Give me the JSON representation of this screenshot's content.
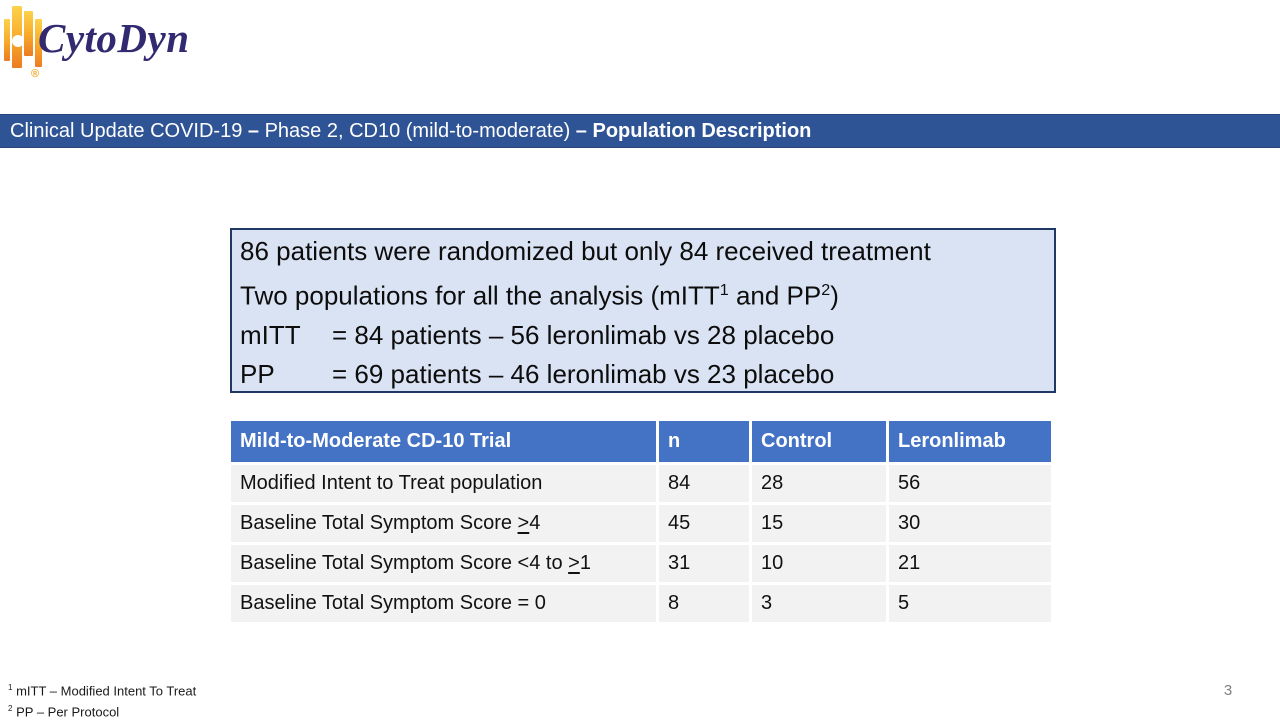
{
  "logo": {
    "text": "CytoDyn",
    "registered": "®"
  },
  "title_bar": {
    "segments": [
      {
        "t": "Clinical Update COVID-19 "
      },
      {
        "t": "– ",
        "b": true
      },
      {
        "t": "Phase 2, CD10 (mild-to-moderate) "
      },
      {
        "t": "– ",
        "b": true
      },
      {
        "t": "Population Description",
        "b": true
      }
    ]
  },
  "info_box": {
    "lines": [
      {
        "label": null,
        "segments": [
          {
            "t": "86 patients were randomized but only 84 received treatment"
          }
        ]
      },
      {
        "label": null,
        "segments": [
          {
            "t": "Two populations for all the analysis (mITT"
          },
          {
            "t": "1",
            "sup": true
          },
          {
            "t": " and PP"
          },
          {
            "t": "2",
            "sup": true
          },
          {
            "t": ")"
          }
        ]
      },
      {
        "label": "mITT",
        "segments": [
          {
            "t": "= 84 patients – 56 leronlimab vs 28 placebo"
          }
        ]
      },
      {
        "label": "PP",
        "segments": [
          {
            "t": "= 69 patients – 46 leronlimab vs 23 placebo"
          }
        ]
      }
    ]
  },
  "table": {
    "headers": [
      "Mild-to-Moderate CD-10 Trial",
      "n",
      "Control",
      "Leronlimab"
    ],
    "rows": [
      {
        "label": [
          {
            "t": "Modified Intent to Treat population"
          }
        ],
        "values": [
          "84",
          "28",
          "56"
        ]
      },
      {
        "label": [
          {
            "t": "Baseline Total Symptom Score "
          },
          {
            "t": ">",
            "u": true
          },
          {
            "t": "4"
          }
        ],
        "values": [
          "45",
          "15",
          "30"
        ]
      },
      {
        "label": [
          {
            "t": "Baseline Total Symptom Score <4 to "
          },
          {
            "t": ">",
            "u": true
          },
          {
            "t": "1"
          }
        ],
        "values": [
          "31",
          "10",
          "21"
        ]
      },
      {
        "label": [
          {
            "t": "Baseline Total Symptom Score = 0"
          }
        ],
        "values": [
          "8",
          "3",
          "5"
        ]
      }
    ]
  },
  "footnotes": [
    [
      {
        "t": "1",
        "sup": true
      },
      {
        "t": " mITT – Modified Intent To Treat"
      }
    ],
    [
      {
        "t": "2",
        "sup": true
      },
      {
        "t": " PP – Per Protocol"
      }
    ]
  ],
  "page_number": "3",
  "colors": {
    "title_bar_bg": "#2F5496",
    "table_header_bg": "#4472C4",
    "info_box_bg": "#DAE3F3",
    "info_box_border": "#1F3864",
    "row_bg": "#F2F2F2",
    "logo_text": "#322A70",
    "logo_orange": "#F5A623",
    "page_number": "#7F7F7F"
  }
}
